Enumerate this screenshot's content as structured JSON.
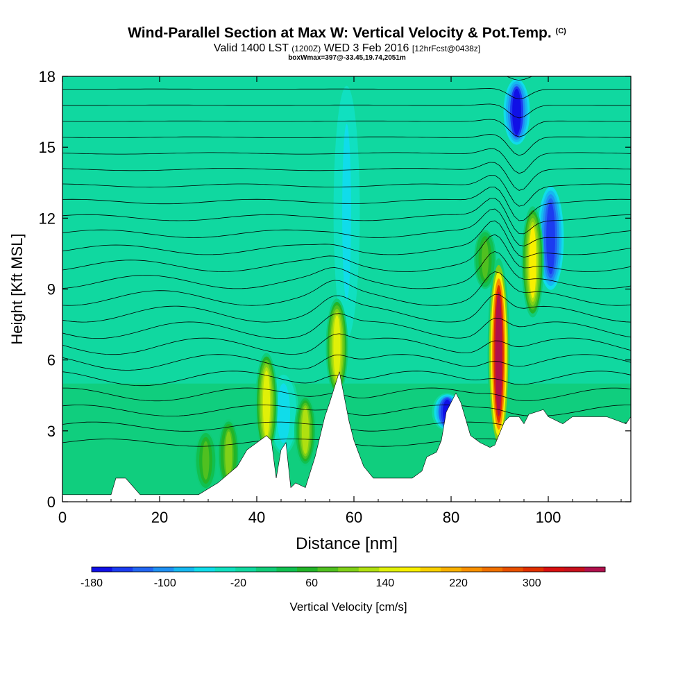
{
  "header": {
    "title": "Wind-Parallel Section at Max W: Vertical Velocity & Pot.Temp.",
    "copyright": "(C)",
    "valid_main": "Valid 1400 LST",
    "valid_utc": "(1200Z)",
    "valid_date": "WED 3 Feb 2016",
    "forecast": "[12hrFcst@0438z]",
    "box_info": "boxWmax=397@-33.45,19.74,2051m"
  },
  "chart_data": {
    "type": "heatmap",
    "xlabel": "Distance [nm]",
    "ylabel": "Height [Kft MSL]",
    "xlim": [
      0,
      117
    ],
    "ylim": [
      0,
      18
    ],
    "x_ticks": [
      0,
      20,
      40,
      60,
      80,
      100
    ],
    "y_ticks": [
      0,
      3,
      6,
      9,
      12,
      15,
      18
    ],
    "colorbar": {
      "label": "Vertical Velocity [cm/s]",
      "min": -180,
      "max": 380,
      "tick_values": [
        -180,
        -100,
        -20,
        60,
        140,
        220,
        300
      ],
      "tick_labels": [
        "-180",
        "-100",
        "-20",
        "60",
        "140",
        "220",
        "300"
      ],
      "colors": [
        "#1010e6",
        "#1b3cf0",
        "#2266f2",
        "#1f90f2",
        "#16b8f0",
        "#10dcea",
        "#10e0c0",
        "#10d8a0",
        "#10cc78",
        "#10c050",
        "#22b428",
        "#50c020",
        "#80d018",
        "#b0e010",
        "#e0f008",
        "#f8f000",
        "#f8d000",
        "#f8b000",
        "#f89000",
        "#f07000",
        "#e85000",
        "#e03000",
        "#d81010",
        "#c8101c",
        "#b0104c"
      ]
    },
    "terrain": {
      "x": [
        0,
        10,
        11,
        13,
        16,
        18,
        28,
        32,
        36,
        38,
        40,
        42,
        43,
        44,
        45,
        46,
        47,
        48,
        50,
        52,
        54,
        55,
        57,
        59,
        60,
        62,
        64,
        66,
        68,
        72,
        74,
        75,
        77,
        78,
        79,
        80,
        81,
        82,
        84,
        86,
        88,
        89,
        91,
        92,
        94,
        95,
        96,
        99,
        100,
        103,
        105,
        109,
        112,
        116,
        117
      ],
      "h": [
        0.3,
        0.3,
        1,
        1,
        0.3,
        0.3,
        0.3,
        0.8,
        1.5,
        2.2,
        2.5,
        2.8,
        2.6,
        1,
        2.2,
        2.5,
        0.6,
        0.8,
        0.6,
        1.9,
        3.6,
        4.2,
        5.5,
        3.4,
        2.6,
        1.5,
        1,
        1,
        1,
        1,
        1.3,
        1.9,
        2.1,
        2.6,
        3.8,
        4.2,
        4.6,
        4.2,
        2.8,
        2.5,
        2.3,
        2.4,
        3.4,
        3.6,
        3.6,
        3.3,
        3.7,
        3.9,
        3.6,
        3.3,
        3.6,
        3.6,
        3.6,
        3.3,
        3.6
      ]
    },
    "updrafts": [
      {
        "x": 42,
        "y0": 2.0,
        "y1": 6.3,
        "peak": 140
      },
      {
        "x": 56.5,
        "y0": 4.5,
        "y1": 8.6,
        "peak": 150
      },
      {
        "x": 89.8,
        "y0": 2.2,
        "y1": 10.3,
        "peak": 380
      },
      {
        "x": 96.8,
        "y0": 7.8,
        "y1": 12.5,
        "peak": 160
      },
      {
        "x": 50,
        "y0": 1.5,
        "y1": 4.5,
        "peak": 120
      },
      {
        "x": 34.2,
        "y0": 0.5,
        "y1": 3.5,
        "peak": 90
      },
      {
        "x": 29.5,
        "y0": 0.5,
        "y1": 3.0,
        "peak": 70
      },
      {
        "x": 87,
        "y0": 9.0,
        "y1": 11.5,
        "peak": 70
      }
    ],
    "downdrafts": [
      {
        "x": 79.2,
        "y0": 3.0,
        "y1": 4.6,
        "peak": -180
      },
      {
        "x": 100.5,
        "y0": 8.8,
        "y1": 13.5,
        "peak": -150
      },
      {
        "x": 93.5,
        "y0": 15.0,
        "y1": 18.0,
        "peak": -170
      },
      {
        "x": 58.5,
        "y0": 6.5,
        "y1": 18.0,
        "peak": -50
      },
      {
        "x": 45.5,
        "y0": 2.0,
        "y1": 5.5,
        "peak": -60
      }
    ]
  }
}
